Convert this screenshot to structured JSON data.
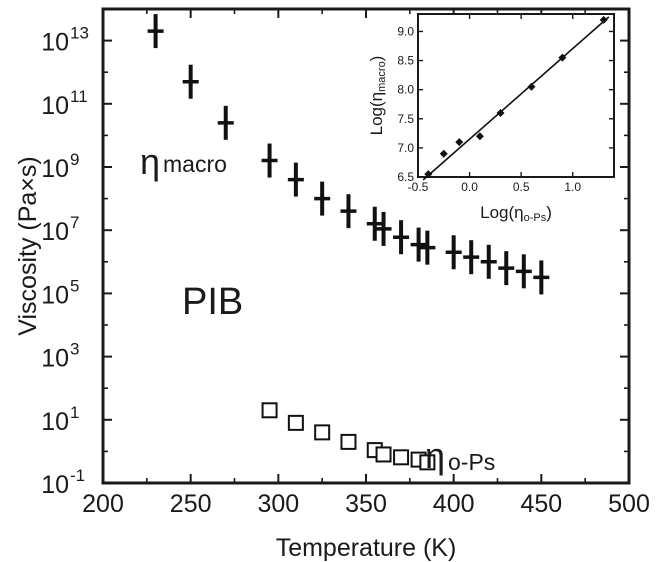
{
  "chart_data": [
    {
      "type": "scatter",
      "xlabel": "Temperature (K)",
      "ylabel": "Viscosity (Pa×s)",
      "xlim": [
        200,
        500
      ],
      "ylim_log10": [
        -1,
        14
      ],
      "y_scale": "log",
      "x_ticks": [
        200,
        250,
        300,
        350,
        400,
        450,
        500
      ],
      "x_tick_labels": [
        "200",
        "250",
        "300",
        "350",
        "400",
        "450",
        "500"
      ],
      "y_ticks": [
        {
          "base": "10",
          "exp": "-1",
          "log": -1
        },
        {
          "base": "10",
          "exp": "1",
          "log": 1
        },
        {
          "base": "10",
          "exp": "3",
          "log": 3
        },
        {
          "base": "10",
          "exp": "5",
          "log": 5
        },
        {
          "base": "10",
          "exp": "7",
          "log": 7
        },
        {
          "base": "10",
          "exp": "9",
          "log": 9
        },
        {
          "base": "10",
          "exp": "11",
          "log": 11
        },
        {
          "base": "10",
          "exp": "13",
          "log": 13
        }
      ],
      "annotations": {
        "material": "PIB",
        "macro_symbol": "η",
        "macro_sub": "macro",
        "ops_symbol": "η",
        "ops_sub": "o-Ps"
      },
      "series": [
        {
          "marker": "vertical-bar",
          "x": [
            230,
            250,
            270,
            295,
            310,
            325,
            340,
            355,
            360,
            370,
            380,
            385,
            400,
            410,
            420,
            430,
            440,
            450
          ],
          "y": [
            20000000000000.0,
            500000000000.0,
            25000000000.0,
            1600000000.0,
            400000000.0,
            100000000.0,
            40000000.0,
            16000000.0,
            11000000.0,
            6000000.0,
            3500000.0,
            2800000.0,
            2000000.0,
            1400000.0,
            1000000.0,
            630000.0,
            500000.0,
            320000.0
          ]
        },
        {
          "marker": "open-square",
          "x": [
            295,
            310,
            325,
            340,
            355,
            360,
            370,
            380,
            385
          ],
          "y": [
            20,
            8,
            4,
            2,
            1.1,
            0.8,
            0.65,
            0.55,
            0.45
          ]
        }
      ]
    },
    {
      "type": "scatter",
      "inset": true,
      "xlabel_prefix": "Log(",
      "xlabel_sym": "η",
      "xlabel_sub": "o-Ps",
      "xlabel_suffix": ")",
      "ylabel_prefix": "Log(",
      "ylabel_sym": "η",
      "ylabel_sub": "macro",
      "ylabel_suffix": ")",
      "xlim": [
        -0.5,
        1.4
      ],
      "ylim": [
        6.5,
        9.3
      ],
      "x_ticks": [
        -0.5,
        0.0,
        0.5,
        1.0
      ],
      "x_tick_labels": [
        "-0.5",
        "0.0",
        "0.5",
        "1.0"
      ],
      "y_ticks": [
        6.5,
        7.0,
        7.5,
        8.0,
        8.5,
        9.0
      ],
      "y_tick_labels": [
        "6.5",
        "7.0",
        "7.5",
        "8.0",
        "8.5",
        "9.0"
      ],
      "series": [
        {
          "marker": "diamond",
          "x": [
            -0.4,
            -0.25,
            -0.1,
            0.1,
            0.3,
            0.6,
            0.9,
            1.3
          ],
          "y": [
            6.55,
            6.9,
            7.1,
            7.2,
            7.6,
            8.05,
            8.55,
            9.2
          ]
        }
      ],
      "fit_line": {
        "x": [
          -0.45,
          1.35
        ],
        "y": [
          6.45,
          9.25
        ]
      }
    }
  ]
}
